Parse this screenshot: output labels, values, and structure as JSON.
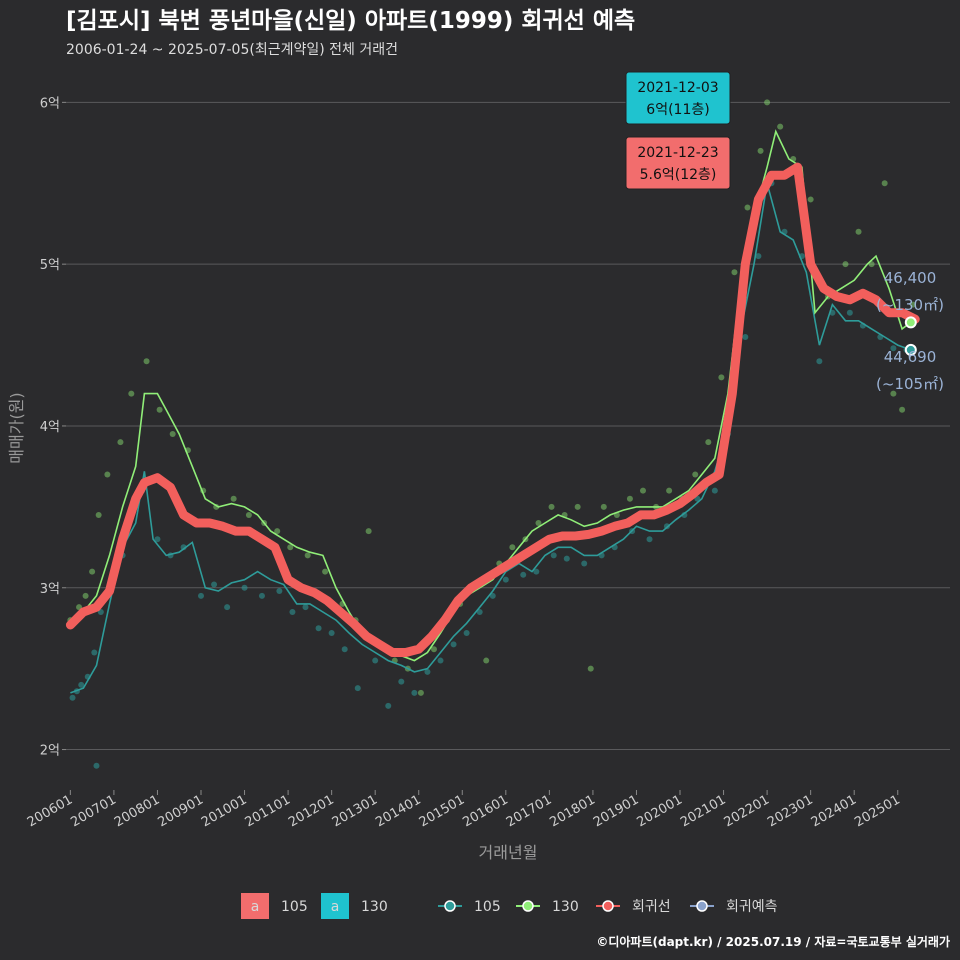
{
  "title": "[김포시] 북변 풍년마을(신일) 아파트(1999) 회귀선 예측",
  "subtitle": "2006-01-24 ~ 2025-07-05(최근계약일) 전체 거래건",
  "credit": "©디아파트(dapt.kr) / 2025.07.19 / 자료=국토교통부 실거래가",
  "colors": {
    "s105": "#2e9c9a",
    "s130": "#90ee78",
    "reg": "#f25f5c",
    "pred": "#8aa2cc",
    "ann105": "#f26d6d",
    "ann130": "#1fc3cf"
  },
  "chart_data": {
    "type": "line",
    "title": "[김포시] 북변 풍년마을(신일) 아파트(1999) 회귀선 예측",
    "subtitle": "2006-01-24 ~ 2025-07-05(최근계약일) 전체 거래건",
    "xlabel": "거래년월",
    "ylabel": "매매가(원)",
    "ylim": [
      1.75,
      6.2
    ],
    "yticks": [
      {
        "v": 2,
        "label": "2억"
      },
      {
        "v": 3,
        "label": "3억"
      },
      {
        "v": 4,
        "label": "4억"
      },
      {
        "v": 5,
        "label": "5억"
      },
      {
        "v": 6,
        "label": "6억"
      }
    ],
    "xlim": [
      2005.9,
      2026.2
    ],
    "xticks": [
      {
        "v": 2006,
        "label": "200601"
      },
      {
        "v": 2007,
        "label": "200701"
      },
      {
        "v": 2008,
        "label": "200801"
      },
      {
        "v": 2009,
        "label": "200901"
      },
      {
        "v": 2010,
        "label": "201001"
      },
      {
        "v": 2011,
        "label": "201101"
      },
      {
        "v": 2012,
        "label": "201201"
      },
      {
        "v": 2013,
        "label": "201301"
      },
      {
        "v": 2014,
        "label": "201401"
      },
      {
        "v": 2015,
        "label": "201501"
      },
      {
        "v": 2016,
        "label": "201601"
      },
      {
        "v": 2017,
        "label": "201701"
      },
      {
        "v": 2018,
        "label": "201801"
      },
      {
        "v": 2019,
        "label": "201901"
      },
      {
        "v": 2020,
        "label": "202001"
      },
      {
        "v": 2021,
        "label": "202101"
      },
      {
        "v": 2022,
        "label": "202201"
      },
      {
        "v": 2023,
        "label": "202301"
      },
      {
        "v": 2024,
        "label": "202401"
      },
      {
        "v": 2025,
        "label": "202501"
      }
    ],
    "grid": true,
    "legend_position": "bottom",
    "legend": {
      "text_keys": [
        {
          "key": "a",
          "name": "105",
          "color": "#f26d6d"
        },
        {
          "key": "a",
          "name": "130",
          "color": "#1fc3cf"
        }
      ],
      "series": [
        {
          "name": "105",
          "color": "#2e9c9a"
        },
        {
          "name": "130",
          "color": "#90ee78"
        },
        {
          "name": "회귀선",
          "color": "#f25f5c"
        },
        {
          "name": "회귀예측",
          "color": "#8aa2cc"
        }
      ]
    },
    "series": [
      {
        "name": "105",
        "x": [
          2006.0,
          2006.3,
          2006.6,
          2006.9,
          2007.2,
          2007.5,
          2007.7,
          2007.9,
          2008.2,
          2008.5,
          2008.8,
          2009.1,
          2009.4,
          2009.7,
          2010.0,
          2010.3,
          2010.6,
          2010.9,
          2011.2,
          2011.5,
          2011.8,
          2012.1,
          2012.4,
          2012.7,
          2013.0,
          2013.3,
          2013.6,
          2013.9,
          2014.2,
          2014.5,
          2014.8,
          2015.1,
          2015.4,
          2015.7,
          2016.0,
          2016.3,
          2016.6,
          2016.9,
          2017.2,
          2017.5,
          2017.8,
          2018.1,
          2018.4,
          2018.7,
          2019.0,
          2019.3,
          2019.6,
          2019.9,
          2020.2,
          2020.5,
          2020.8,
          2021.1,
          2021.4,
          2021.7,
          2022.0,
          2022.3,
          2022.6,
          2022.9,
          2023.2,
          2023.5,
          2023.8,
          2024.1,
          2024.4,
          2024.7,
          2025.0,
          2025.3
        ],
        "y": [
          2.35,
          2.38,
          2.52,
          2.9,
          3.25,
          3.4,
          3.72,
          3.3,
          3.2,
          3.22,
          3.28,
          3.0,
          2.98,
          3.03,
          3.05,
          3.1,
          3.05,
          3.02,
          2.9,
          2.9,
          2.85,
          2.8,
          2.72,
          2.65,
          2.6,
          2.55,
          2.52,
          2.48,
          2.5,
          2.6,
          2.7,
          2.78,
          2.88,
          2.98,
          3.1,
          3.15,
          3.1,
          3.2,
          3.25,
          3.25,
          3.2,
          3.2,
          3.25,
          3.3,
          3.38,
          3.35,
          3.35,
          3.42,
          3.48,
          3.55,
          3.72,
          4.0,
          4.6,
          5.0,
          5.5,
          5.2,
          5.15,
          4.95,
          4.5,
          4.75,
          4.65,
          4.65,
          4.6,
          4.55,
          4.5,
          4.47
        ]
      },
      {
        "name": "130",
        "x": [
          2006.0,
          2006.3,
          2006.6,
          2006.9,
          2007.2,
          2007.5,
          2007.7,
          2008.0,
          2008.2,
          2008.5,
          2008.8,
          2009.1,
          2009.4,
          2009.7,
          2010.0,
          2010.3,
          2010.6,
          2010.9,
          2011.2,
          2011.5,
          2011.8,
          2012.1,
          2012.4,
          2012.7,
          2013.0,
          2013.3,
          2013.6,
          2013.9,
          2014.2,
          2014.5,
          2014.8,
          2015.1,
          2015.4,
          2015.7,
          2016.0,
          2016.3,
          2016.6,
          2016.9,
          2017.2,
          2017.5,
          2017.8,
          2018.1,
          2018.4,
          2018.7,
          2019.0,
          2019.3,
          2019.6,
          2019.9,
          2020.2,
          2020.5,
          2020.8,
          2021.1,
          2021.4,
          2021.7,
          2022.0,
          2022.2,
          2022.5,
          2022.8,
          2023.1,
          2023.4,
          2023.7,
          2024.0,
          2024.3,
          2024.5,
          2024.8,
          2025.1,
          2025.3
        ],
        "y": [
          2.8,
          2.85,
          2.95,
          3.2,
          3.5,
          3.75,
          4.2,
          4.2,
          4.1,
          3.95,
          3.75,
          3.55,
          3.5,
          3.52,
          3.5,
          3.45,
          3.35,
          3.3,
          3.25,
          3.22,
          3.2,
          3.0,
          2.85,
          2.72,
          2.65,
          2.6,
          2.58,
          2.55,
          2.6,
          2.72,
          2.85,
          2.95,
          3.0,
          3.05,
          3.15,
          3.25,
          3.35,
          3.4,
          3.45,
          3.42,
          3.38,
          3.4,
          3.45,
          3.48,
          3.5,
          3.5,
          3.5,
          3.55,
          3.6,
          3.7,
          3.8,
          4.2,
          4.9,
          5.3,
          5.6,
          5.82,
          5.65,
          5.6,
          4.7,
          4.8,
          4.85,
          4.9,
          5.0,
          5.05,
          4.85,
          4.6,
          4.64
        ]
      },
      {
        "name": "회귀선",
        "x": [
          2006.0,
          2006.3,
          2006.6,
          2006.9,
          2007.2,
          2007.5,
          2007.7,
          2008.0,
          2008.3,
          2008.6,
          2008.9,
          2009.2,
          2009.5,
          2009.8,
          2010.1,
          2010.4,
          2010.7,
          2011.0,
          2011.3,
          2011.6,
          2011.9,
          2012.2,
          2012.5,
          2012.8,
          2013.1,
          2013.4,
          2013.7,
          2014.0,
          2014.3,
          2014.6,
          2014.9,
          2015.2,
          2015.5,
          2015.8,
          2016.1,
          2016.4,
          2016.7,
          2017.0,
          2017.3,
          2017.6,
          2017.9,
          2018.2,
          2018.5,
          2018.8,
          2019.1,
          2019.4,
          2019.7,
          2020.0,
          2020.3,
          2020.6,
          2020.9,
          2021.2,
          2021.5,
          2021.8,
          2022.1,
          2022.4,
          2022.7,
          2023.0,
          2023.3,
          2023.6,
          2023.9,
          2024.2,
          2024.5,
          2024.8,
          2025.1,
          2025.4
        ],
        "y": [
          2.77,
          2.85,
          2.88,
          2.98,
          3.3,
          3.55,
          3.65,
          3.68,
          3.62,
          3.45,
          3.4,
          3.4,
          3.38,
          3.35,
          3.35,
          3.3,
          3.25,
          3.05,
          3.0,
          2.97,
          2.92,
          2.85,
          2.78,
          2.7,
          2.65,
          2.6,
          2.6,
          2.62,
          2.7,
          2.8,
          2.92,
          3.0,
          3.05,
          3.1,
          3.15,
          3.2,
          3.25,
          3.3,
          3.32,
          3.32,
          3.33,
          3.35,
          3.38,
          3.4,
          3.45,
          3.45,
          3.48,
          3.52,
          3.58,
          3.65,
          3.7,
          4.2,
          5.0,
          5.4,
          5.55,
          5.55,
          5.6,
          5.0,
          4.85,
          4.8,
          4.78,
          4.82,
          4.78,
          4.7,
          4.7,
          4.66
        ]
      }
    ],
    "scatter_105": [
      [
        2006.05,
        2.32
      ],
      [
        2006.15,
        2.36
      ],
      [
        2006.25,
        2.4
      ],
      [
        2006.4,
        2.45
      ],
      [
        2006.55,
        2.6
      ],
      [
        2006.7,
        2.85
      ],
      [
        2007.0,
        3.05
      ],
      [
        2007.2,
        3.2
      ],
      [
        2007.45,
        3.48
      ],
      [
        2007.65,
        3.6
      ],
      [
        2008.0,
        3.3
      ],
      [
        2008.3,
        3.2
      ],
      [
        2008.6,
        3.25
      ],
      [
        2009.0,
        2.95
      ],
      [
        2009.3,
        3.02
      ],
      [
        2009.6,
        2.88
      ],
      [
        2010.0,
        3.0
      ],
      [
        2010.4,
        2.95
      ],
      [
        2010.8,
        2.98
      ],
      [
        2011.1,
        2.85
      ],
      [
        2011.4,
        2.88
      ],
      [
        2011.7,
        2.75
      ],
      [
        2012.0,
        2.72
      ],
      [
        2012.3,
        2.62
      ],
      [
        2012.6,
        2.38
      ],
      [
        2013.0,
        2.55
      ],
      [
        2013.3,
        2.27
      ],
      [
        2013.6,
        2.42
      ],
      [
        2013.9,
        2.35
      ],
      [
        2014.2,
        2.48
      ],
      [
        2014.5,
        2.55
      ],
      [
        2014.8,
        2.65
      ],
      [
        2015.1,
        2.72
      ],
      [
        2015.4,
        2.85
      ],
      [
        2015.7,
        2.95
      ],
      [
        2016.0,
        3.05
      ],
      [
        2016.4,
        3.08
      ],
      [
        2016.7,
        3.1
      ],
      [
        2017.1,
        3.2
      ],
      [
        2017.4,
        3.18
      ],
      [
        2017.8,
        3.15
      ],
      [
        2018.2,
        3.2
      ],
      [
        2018.5,
        3.25
      ],
      [
        2018.9,
        3.35
      ],
      [
        2019.3,
        3.3
      ],
      [
        2019.7,
        3.38
      ],
      [
        2020.1,
        3.45
      ],
      [
        2020.4,
        3.55
      ],
      [
        2020.8,
        3.6
      ],
      [
        2021.1,
        3.95
      ],
      [
        2021.5,
        4.55
      ],
      [
        2021.8,
        5.05
      ],
      [
        2022.1,
        5.5
      ],
      [
        2022.4,
        5.2
      ],
      [
        2022.8,
        5.05
      ],
      [
        2023.2,
        4.4
      ],
      [
        2023.5,
        4.7
      ],
      [
        2023.9,
        4.7
      ],
      [
        2024.2,
        4.62
      ],
      [
        2024.6,
        4.55
      ],
      [
        2024.9,
        4.48
      ],
      [
        2025.2,
        4.47
      ],
      [
        2006.6,
        1.9
      ]
    ],
    "scatter_130": [
      [
        2006.0,
        2.8
      ],
      [
        2006.2,
        2.88
      ],
      [
        2006.35,
        2.95
      ],
      [
        2006.5,
        3.1
      ],
      [
        2006.65,
        3.45
      ],
      [
        2006.85,
        3.7
      ],
      [
        2007.15,
        3.9
      ],
      [
        2007.4,
        4.2
      ],
      [
        2007.75,
        4.4
      ],
      [
        2008.05,
        4.1
      ],
      [
        2008.35,
        3.95
      ],
      [
        2008.7,
        3.85
      ],
      [
        2009.05,
        3.6
      ],
      [
        2009.35,
        3.5
      ],
      [
        2009.75,
        3.55
      ],
      [
        2010.1,
        3.45
      ],
      [
        2010.45,
        3.4
      ],
      [
        2010.75,
        3.35
      ],
      [
        2011.05,
        3.25
      ],
      [
        2011.45,
        3.2
      ],
      [
        2011.85,
        3.1
      ],
      [
        2012.25,
        2.9
      ],
      [
        2012.55,
        2.8
      ],
      [
        2012.85,
        3.35
      ],
      [
        2013.15,
        2.65
      ],
      [
        2013.45,
        2.55
      ],
      [
        2013.75,
        2.5
      ],
      [
        2014.05,
        2.35
      ],
      [
        2014.35,
        2.62
      ],
      [
        2014.65,
        2.8
      ],
      [
        2014.95,
        2.9
      ],
      [
        2015.25,
        3.0
      ],
      [
        2015.55,
        2.55
      ],
      [
        2015.85,
        3.15
      ],
      [
        2016.15,
        3.25
      ],
      [
        2016.45,
        3.3
      ],
      [
        2016.75,
        3.4
      ],
      [
        2017.05,
        3.5
      ],
      [
        2017.35,
        3.45
      ],
      [
        2017.65,
        3.5
      ],
      [
        2017.95,
        2.5
      ],
      [
        2018.25,
        3.5
      ],
      [
        2018.55,
        3.45
      ],
      [
        2018.85,
        3.55
      ],
      [
        2019.15,
        3.6
      ],
      [
        2019.45,
        3.5
      ],
      [
        2019.75,
        3.6
      ],
      [
        2020.05,
        3.55
      ],
      [
        2020.35,
        3.7
      ],
      [
        2020.65,
        3.9
      ],
      [
        2020.95,
        4.3
      ],
      [
        2021.25,
        4.95
      ],
      [
        2021.55,
        5.35
      ],
      [
        2021.85,
        5.7
      ],
      [
        2022.0,
        6.0
      ],
      [
        2022.3,
        5.85
      ],
      [
        2022.6,
        5.65
      ],
      [
        2023.0,
        5.4
      ],
      [
        2023.4,
        4.8
      ],
      [
        2023.8,
        5.0
      ],
      [
        2024.1,
        5.2
      ],
      [
        2024.4,
        5.0
      ],
      [
        2024.7,
        5.5
      ],
      [
        2024.9,
        4.2
      ],
      [
        2025.1,
        4.1
      ],
      [
        2025.35,
        4.75
      ]
    ],
    "annotations": [
      {
        "date": "2021-12-03",
        "value": "6억(11층)",
        "x": 2021.92,
        "y": 6.0,
        "color": "#1fc3cf"
      },
      {
        "date": "2021-12-23",
        "value": "5.6억(12층)",
        "x": 2021.97,
        "y": 5.6,
        "color": "#f26d6d"
      }
    ],
    "end_labels": [
      {
        "value": "46,400",
        "area": "(~130㎡)",
        "x": 2025.4,
        "y": 4.64,
        "color": "#90ee78"
      },
      {
        "value": "44,690",
        "area": "(~105㎡)",
        "x": 2025.4,
        "y": 4.47,
        "color": "#2e9c9a"
      }
    ]
  }
}
